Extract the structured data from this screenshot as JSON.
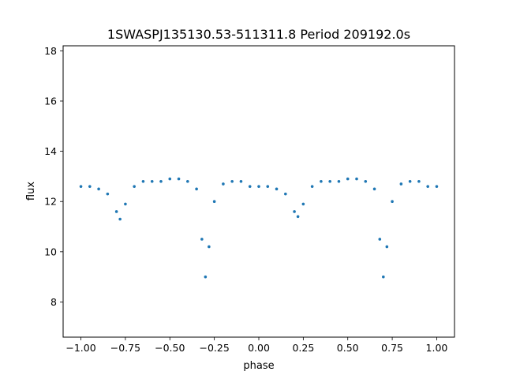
{
  "chart_data": {
    "type": "scatter",
    "title": "1SWASPJ135130.53-511311.8 Period 209192.0s",
    "xlabel": "phase",
    "ylabel": "flux",
    "xlim": [
      -1.1,
      1.1
    ],
    "ylim": [
      6.6,
      18.2
    ],
    "x_ticks": [
      -1.0,
      -0.75,
      -0.5,
      -0.25,
      0.0,
      0.25,
      0.5,
      0.75,
      1.0
    ],
    "x_tick_labels": [
      "−1.00",
      "−0.75",
      "−0.50",
      "−0.25",
      "0.00",
      "0.25",
      "0.50",
      "0.75",
      "1.00"
    ],
    "y_ticks": [
      8,
      10,
      12,
      14,
      16,
      18
    ],
    "y_tick_labels": [
      "8",
      "10",
      "12",
      "14",
      "16",
      "18"
    ],
    "grid": false,
    "marker_color": "#1f77b4",
    "series": [
      {
        "x": [
          -1.0,
          -0.95,
          -0.9,
          -0.85,
          -0.8,
          -0.78,
          -0.75,
          -0.7,
          -0.65,
          -0.6,
          -0.55,
          -0.5,
          -0.45,
          -0.4,
          -0.35,
          -0.32,
          -0.3,
          -0.28,
          -0.25,
          -0.2,
          -0.15,
          -0.1,
          -0.05,
          0.0,
          0.05,
          0.1,
          0.15,
          0.2,
          0.22,
          0.25,
          0.3,
          0.35,
          0.4,
          0.45,
          0.5,
          0.55,
          0.6,
          0.65,
          0.68,
          0.7,
          0.72,
          0.75,
          0.8,
          0.85,
          0.9,
          0.95,
          1.0
        ],
        "y": [
          12.6,
          12.6,
          12.5,
          12.3,
          11.6,
          11.3,
          11.9,
          12.6,
          12.8,
          12.8,
          12.8,
          12.9,
          12.9,
          12.8,
          12.5,
          10.5,
          9.0,
          10.2,
          12.0,
          12.7,
          12.8,
          12.8,
          12.6,
          12.6,
          12.6,
          12.5,
          12.3,
          11.6,
          11.4,
          11.9,
          12.6,
          12.8,
          12.8,
          12.8,
          12.9,
          12.9,
          12.8,
          12.5,
          10.5,
          9.0,
          10.2,
          12.0,
          12.7,
          12.8,
          12.8,
          12.6,
          12.6
        ]
      }
    ]
  }
}
